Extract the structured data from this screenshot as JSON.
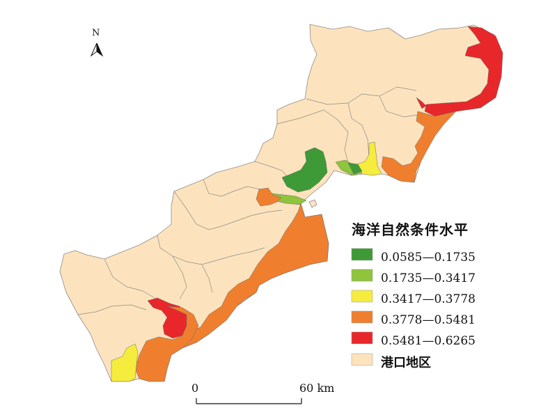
{
  "north": {
    "label": "N"
  },
  "legend": {
    "title": "海洋自然条件水平",
    "items": [
      {
        "label": "0.0585—0.1735",
        "color": "#3e9a36"
      },
      {
        "label": "0.1735—0.3417",
        "color": "#8fc43d"
      },
      {
        "label": "0.3417—0.3778",
        "color": "#f5ec3e"
      },
      {
        "label": "0.3778—0.5481",
        "color": "#ef7f2e"
      },
      {
        "label": "0.5481—0.6265",
        "color": "#e8272a"
      },
      {
        "label": "港口地区",
        "color": "#fde3bd"
      }
    ]
  },
  "scale": {
    "zero": "0",
    "max": "60",
    "unit": "km"
  }
}
